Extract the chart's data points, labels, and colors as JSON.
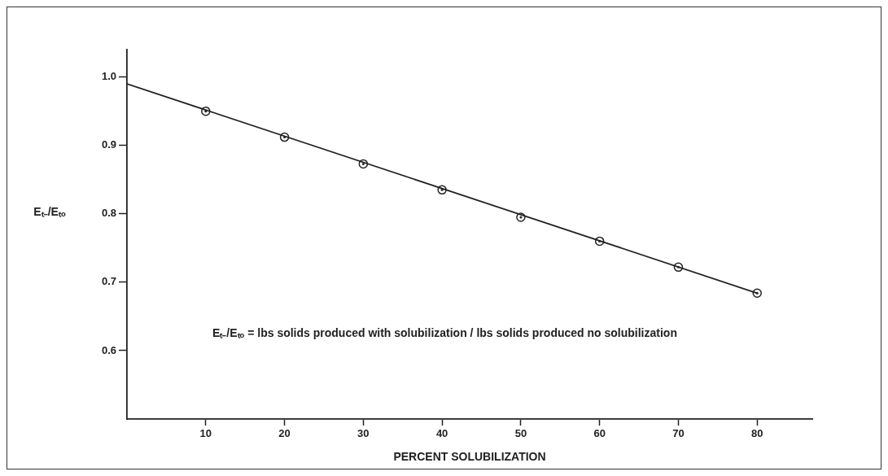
{
  "chart_data": {
    "type": "scatter",
    "xlabel": "PERCENT SOLUBILIZATION",
    "ylabel": "Eₜ₋/Eₜₒ",
    "xlim": [
      0,
      87
    ],
    "xticks": [
      10,
      20,
      30,
      40,
      50,
      60,
      70,
      80
    ],
    "ylim": [
      0.5,
      1.04
    ],
    "yticks": [
      0.6,
      0.7,
      0.8,
      0.9,
      {
        "value": 1,
        "label": "1.0"
      }
    ],
    "grid": false,
    "legend": false,
    "series": [
      {
        "type": "line",
        "color": "#222222",
        "marker": "none",
        "x": [
          0,
          80
        ],
        "values": [
          0.99,
          0.684
        ]
      },
      {
        "color": "#222222",
        "marker": "circle",
        "x": [
          10,
          20,
          30,
          40,
          50,
          60,
          70,
          80
        ],
        "values": [
          0.95,
          0.912,
          0.873,
          0.835,
          0.795,
          0.76,
          0.722,
          0.684
        ]
      }
    ],
    "annotations": [
      "Eₜ₋/Eₜₒ = lbs solids produced with solubilization / lbs solids produced no solubilization"
    ]
  }
}
